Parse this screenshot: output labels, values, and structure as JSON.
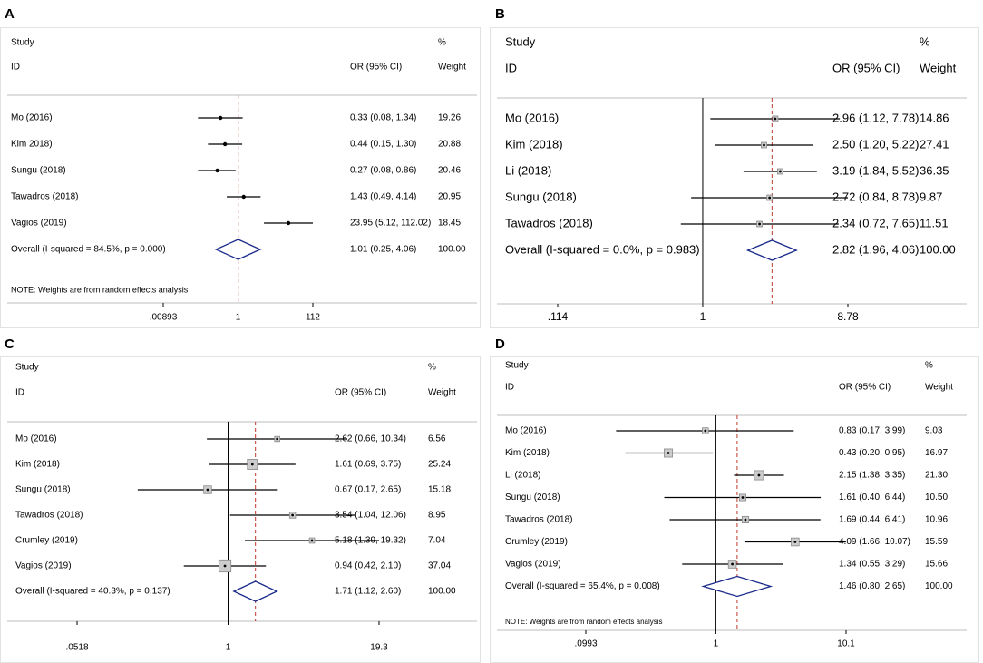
{
  "figure": {
    "colors": {
      "axis": "#000000",
      "ci_line": "#000000",
      "diamond": "#1a2a8a",
      "ref_line": "#c0392b",
      "box_fill": "#cccccc",
      "box_stroke": "#888888"
    },
    "columns": {
      "study": "Study",
      "id": "ID",
      "or": "OR (95% CI)",
      "pct": "%",
      "weight": "Weight"
    }
  },
  "chart_data": [
    {
      "panel": "A",
      "type": "forest",
      "scale": "log",
      "xlim": [
        0.00893,
        112
      ],
      "ticks": [
        ".00893",
        "1",
        "112"
      ],
      "ref": 1.01,
      "studies": [
        {
          "id": "Mo (2016)",
          "or": 0.33,
          "lo": 0.08,
          "hi": 1.34,
          "text": "0.33 (0.08, 1.34)",
          "weight": "19.26"
        },
        {
          "id": "Kim 2018)",
          "or": 0.44,
          "lo": 0.15,
          "hi": 1.3,
          "text": "0.44 (0.15, 1.30)",
          "weight": "20.88"
        },
        {
          "id": "Sungu (2018)",
          "or": 0.27,
          "lo": 0.08,
          "hi": 0.86,
          "text": "0.27 (0.08, 0.86)",
          "weight": "20.46"
        },
        {
          "id": "Tawadros (2018)",
          "or": 1.43,
          "lo": 0.49,
          "hi": 4.14,
          "text": "1.43 (0.49, 4.14)",
          "weight": "20.95"
        },
        {
          "id": "Vagios (2019)",
          "or": 23.95,
          "lo": 5.12,
          "hi": 112.02,
          "text": "23.95 (5.12, 112.02)",
          "weight": "18.45"
        }
      ],
      "overall": {
        "label": "Overall  (I-squared = 84.5%, p = 0.000)",
        "or": 1.01,
        "lo": 0.25,
        "hi": 4.06,
        "text": "1.01 (0.25, 4.06)",
        "weight": "100.00"
      },
      "note": "NOTE: Weights are from random effects analysis"
    },
    {
      "panel": "B",
      "type": "forest",
      "scale": "log",
      "xlim": [
        0.114,
        8.78
      ],
      "ticks": [
        ".114",
        "1",
        "8.78"
      ],
      "ref": 2.82,
      "studies": [
        {
          "id": "Mo (2016)",
          "or": 2.96,
          "lo": 1.12,
          "hi": 7.78,
          "text": "2.96 (1.12, 7.78)",
          "weight": "14.86"
        },
        {
          "id": "Kim (2018)",
          "or": 2.5,
          "lo": 1.2,
          "hi": 5.22,
          "text": "2.50 (1.20, 5.22)",
          "weight": "27.41"
        },
        {
          "id": "Li (2018)",
          "or": 3.19,
          "lo": 1.84,
          "hi": 5.52,
          "text": "3.19 (1.84, 5.52)",
          "weight": "36.35"
        },
        {
          "id": "Sungu (2018)",
          "or": 2.72,
          "lo": 0.84,
          "hi": 8.78,
          "text": "2.72 (0.84, 8.78)",
          "weight": "9.87"
        },
        {
          "id": "Tawadros (2018)",
          "or": 2.34,
          "lo": 0.72,
          "hi": 7.65,
          "text": "2.34 (0.72, 7.65)",
          "weight": "11.51"
        }
      ],
      "overall": {
        "label": "Overall  (I-squared = 0.0%, p = 0.983)",
        "or": 2.82,
        "lo": 1.96,
        "hi": 4.06,
        "text": "2.82 (1.96, 4.06)",
        "weight": "100.00"
      },
      "note": ""
    },
    {
      "panel": "C",
      "type": "forest",
      "scale": "log",
      "xlim": [
        0.0518,
        19.3
      ],
      "ticks": [
        ".0518",
        "1",
        "19.3"
      ],
      "ref": 1.71,
      "studies": [
        {
          "id": "Mo (2016)",
          "or": 2.62,
          "lo": 0.66,
          "hi": 10.34,
          "text": "2.62 (0.66, 10.34)",
          "weight": "6.56"
        },
        {
          "id": "Kim (2018)",
          "or": 1.61,
          "lo": 0.69,
          "hi": 3.75,
          "text": "1.61 (0.69, 3.75)",
          "weight": "25.24"
        },
        {
          "id": "Sungu (2018)",
          "or": 0.67,
          "lo": 0.17,
          "hi": 2.65,
          "text": "0.67 (0.17, 2.65)",
          "weight": "15.18"
        },
        {
          "id": "Tawadros (2018)",
          "or": 3.54,
          "lo": 1.04,
          "hi": 12.06,
          "text": "3.54 (1.04, 12.06)",
          "weight": "8.95"
        },
        {
          "id": "Crumley (2019)",
          "or": 5.18,
          "lo": 1.39,
          "hi": 19.32,
          "text": "5.18 (1.39, 19.32)",
          "weight": "7.04"
        },
        {
          "id": "Vagios (2019)",
          "or": 0.94,
          "lo": 0.42,
          "hi": 2.1,
          "text": "0.94 (0.42, 2.10)",
          "weight": "37.04"
        }
      ],
      "overall": {
        "label": "Overall  (I-squared = 40.3%, p = 0.137)",
        "or": 1.71,
        "lo": 1.12,
        "hi": 2.6,
        "text": "1.71 (1.12, 2.60)",
        "weight": "100.00"
      },
      "note": ""
    },
    {
      "panel": "D",
      "type": "forest",
      "scale": "log",
      "xlim": [
        0.0993,
        10.1
      ],
      "ticks": [
        ".0993",
        "1",
        "10.1"
      ],
      "ref": 1.46,
      "studies": [
        {
          "id": "Mo (2016)",
          "or": 0.83,
          "lo": 0.17,
          "hi": 3.99,
          "text": "0.83 (0.17, 3.99)",
          "weight": "9.03"
        },
        {
          "id": "Kim (2018)",
          "or": 0.43,
          "lo": 0.2,
          "hi": 0.95,
          "text": "0.43 (0.20, 0.95)",
          "weight": "16.97"
        },
        {
          "id": "Li (2018)",
          "or": 2.15,
          "lo": 1.38,
          "hi": 3.35,
          "text": "2.15 (1.38, 3.35)",
          "weight": "21.30"
        },
        {
          "id": "Sungu (2018)",
          "or": 1.61,
          "lo": 0.4,
          "hi": 6.44,
          "text": "1.61 (0.40, 6.44)",
          "weight": "10.50"
        },
        {
          "id": "Tawadros (2018)",
          "or": 1.69,
          "lo": 0.44,
          "hi": 6.41,
          "text": "1.69 (0.44, 6.41)",
          "weight": "10.96"
        },
        {
          "id": "Crumley (2019)",
          "or": 4.09,
          "lo": 1.66,
          "hi": 10.07,
          "text": "4.09 (1.66, 10.07)",
          "weight": "15.59"
        },
        {
          "id": "Vagios (2019)",
          "or": 1.34,
          "lo": 0.55,
          "hi": 3.29,
          "text": "1.34 (0.55, 3.29)",
          "weight": "15.66"
        }
      ],
      "overall": {
        "label": "Overall  (I-squared = 65.4%, p = 0.008)",
        "or": 1.46,
        "lo": 0.8,
        "hi": 2.65,
        "text": "1.46 (0.80, 2.65)",
        "weight": "100.00"
      },
      "note": "NOTE: Weights are from random effects analysis"
    }
  ]
}
